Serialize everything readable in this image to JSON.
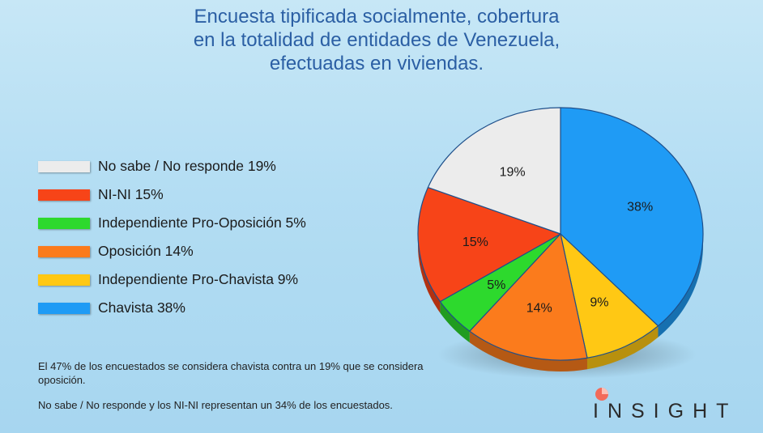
{
  "title_lines": [
    "Encuesta tipificada socialmente, cobertura",
    "en la totalidad de entidades de Venezuela,",
    "efectuadas en viviendas."
  ],
  "legend": [
    {
      "label": "No sabe / No responde 19%"
    },
    {
      "label": "NI-NI 15%"
    },
    {
      "label": "Independiente Pro-Oposición 5%"
    },
    {
      "label": "Oposición 14%"
    },
    {
      "label": "Independiente Pro-Chavista 9%"
    },
    {
      "label": "Chavista 38%"
    }
  ],
  "notes": [
    "El 47% de los encuestados se considera chavista contra un 19% que se considera oposición.",
    "No sabe / No responde y los NI-NI representan un 34% de los encuestados."
  ],
  "brand": "INSIGHT",
  "chart_data": {
    "type": "pie",
    "categories": [
      "Chavista",
      "Independiente Pro-Chavista",
      "Oposición",
      "Independiente Pro-Oposición",
      "NI-NI",
      "No sabe / No responde"
    ],
    "values": [
      38,
      9,
      14,
      5,
      15,
      19
    ],
    "labels": [
      "38%",
      "9%",
      "14%",
      "5%",
      "15%",
      "19%"
    ],
    "colors": [
      "#1f9bf5",
      "#ffc814",
      "#fb7b1c",
      "#2dd92d",
      "#f74418",
      "#ececec"
    ]
  }
}
